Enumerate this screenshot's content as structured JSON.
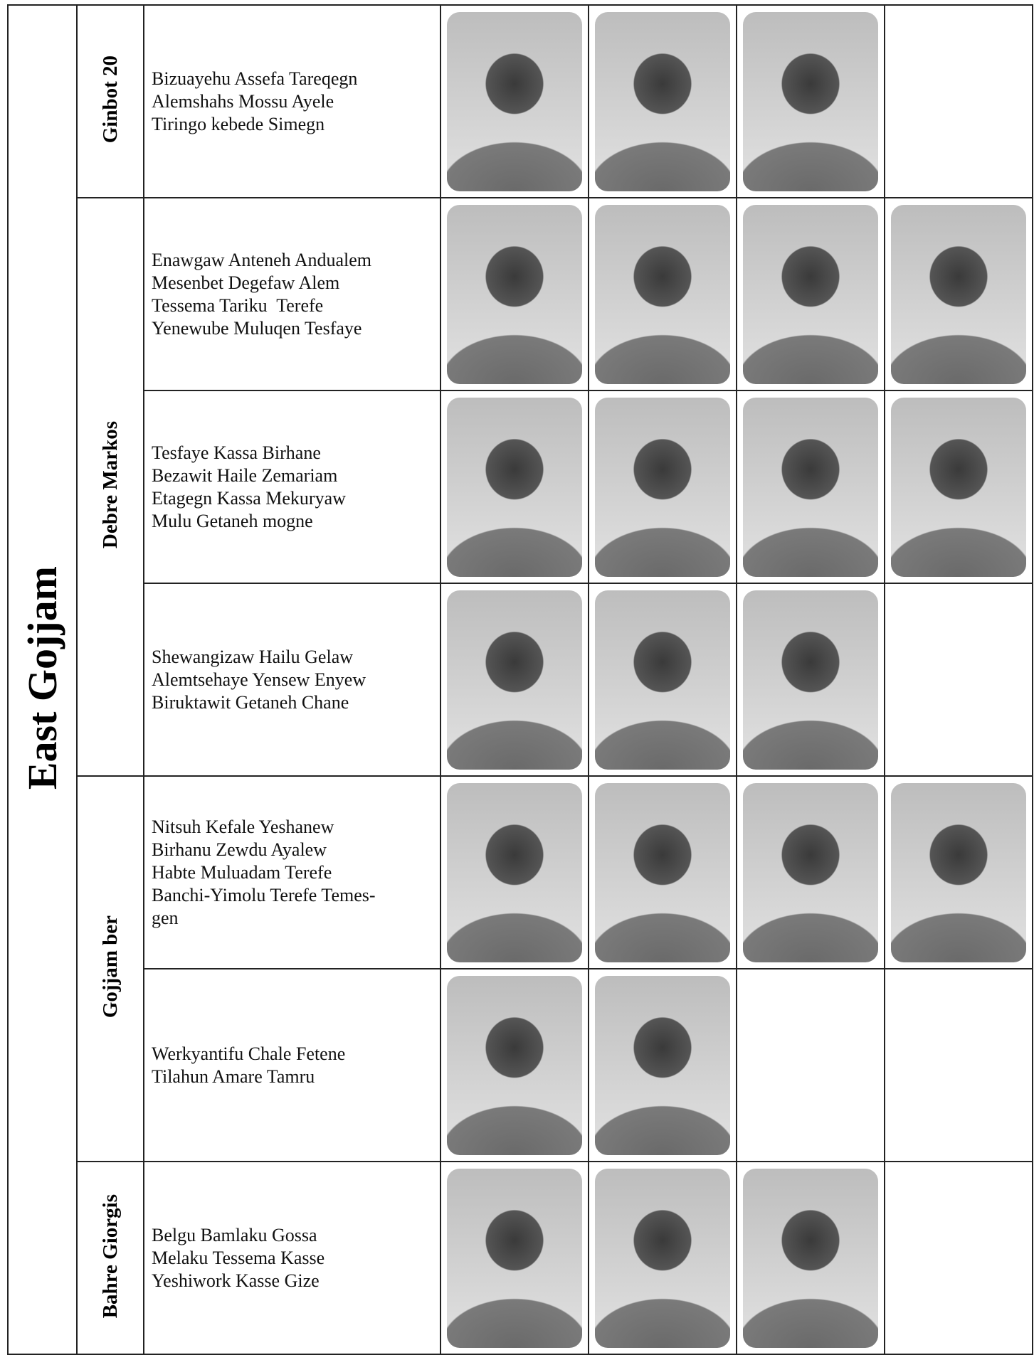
{
  "region": "East Gojjam",
  "districts": [
    {
      "name": "Ginbot 20",
      "rows": [
        [
          "Bizuayehu Assefa Tareqegn",
          "Alemshahs Mossu Ayele",
          "Tiringo kebede Simegn"
        ]
      ]
    },
    {
      "name": "Debre Markos",
      "rows": [
        [
          "Enawgaw Anteneh Andualem",
          "Mesenbet Degefaw Alem",
          "Tessema Tariku  Terefe",
          "Yenewube Muluqen Tesfaye"
        ],
        [
          "Tesfaye Kassa Birhane",
          "Bezawit Haile Zemariam",
          "Etagegn Kassa Mekuryaw",
          "Mulu Getaneh mogne"
        ],
        [
          "Shewangizaw Hailu Gelaw",
          "Alemtsehaye Yensew Enyew",
          "Biruktawit Getaneh Chane"
        ]
      ]
    },
    {
      "name": "Gojjam ber",
      "rows": [
        [
          "Nitsuh Kefale Yeshanew",
          "Birhanu Zewdu Ayalew",
          "Habte Muluadam Terefe",
          "Banchi-Yimolu Terefe Temes-",
          "gen"
        ],
        [
          "Werkyantifu Chale Fetene",
          "Tilahun Amare Tamru"
        ]
      ]
    },
    {
      "name": "Bahre Giorgis",
      "rows": [
        [
          "Belgu Bamlaku Gossa",
          "Melaku Tessema Kasse",
          "Yeshiwork Kasse Gize"
        ]
      ]
    }
  ]
}
